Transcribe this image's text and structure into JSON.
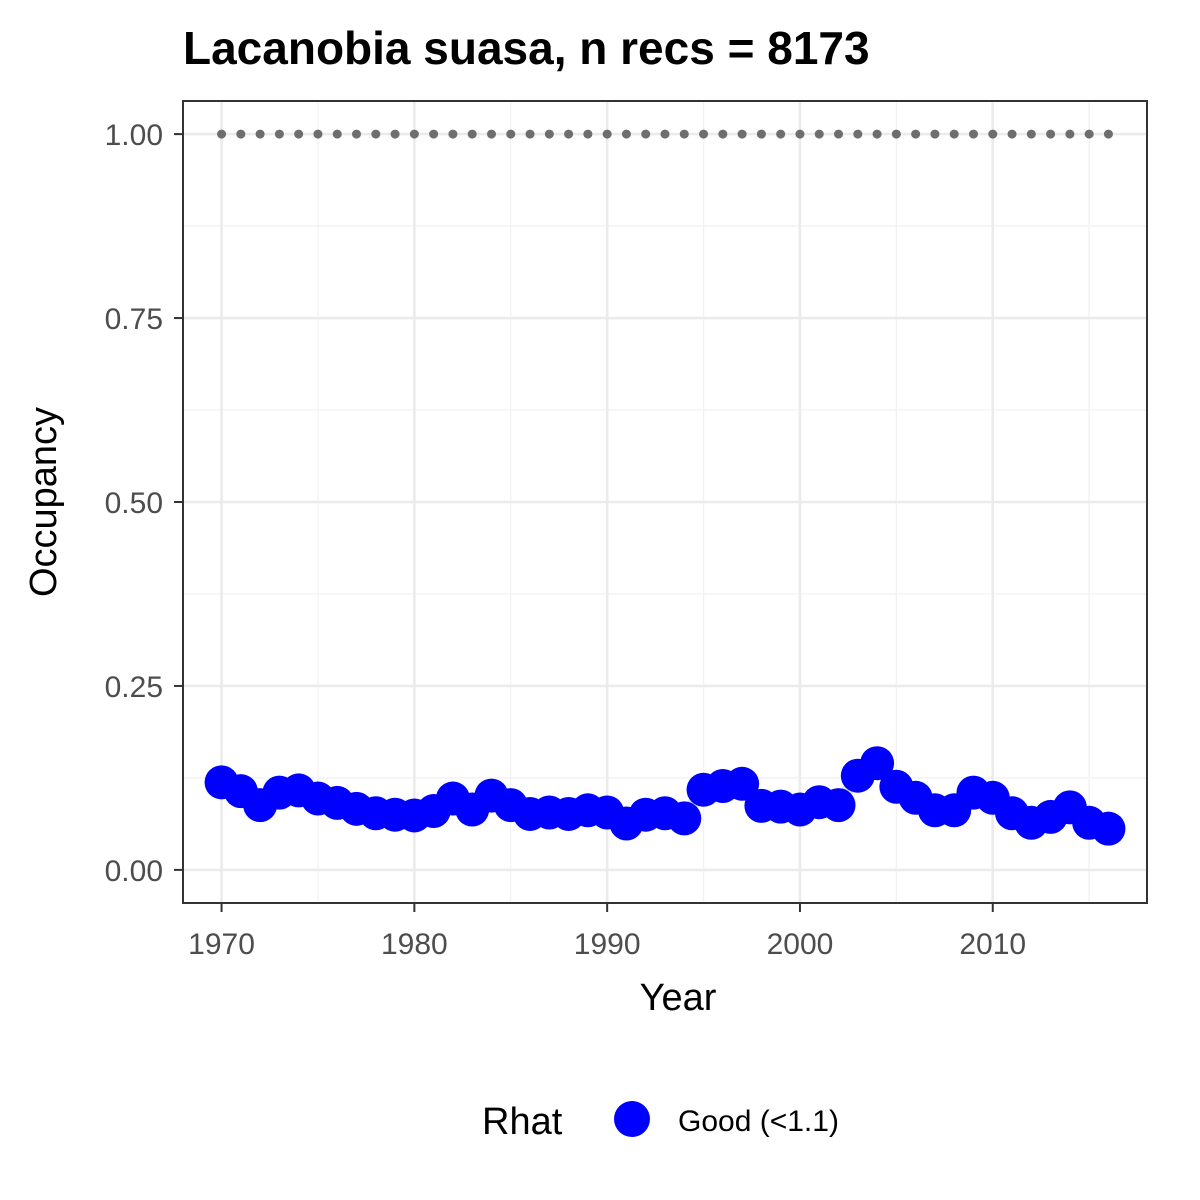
{
  "chart_data": {
    "type": "scatter",
    "title": "Lacanobia suasa, n recs = 8173",
    "xlabel": "Year",
    "ylabel": "Occupancy",
    "xlim": [
      1968,
      2018
    ],
    "ylim": [
      -0.045,
      1.045
    ],
    "x_ticks": [
      1970,
      1980,
      1990,
      2000,
      2010
    ],
    "x_tick_labels": [
      "1970",
      "1980",
      "1990",
      "2000",
      "2010"
    ],
    "y_ticks": [
      0,
      0.25,
      0.5,
      0.75,
      1.0
    ],
    "y_tick_labels": [
      "0.00",
      "0.25",
      "0.50",
      "0.75",
      "1.00"
    ],
    "grid": true,
    "legend": {
      "title": "Rhat",
      "position": "bottom",
      "entries": [
        {
          "label": "Good (<1.1)",
          "color": "#0000ff"
        }
      ]
    },
    "series": [
      {
        "name": "Good (<1.1)",
        "color": "#0000ff",
        "x": [
          1970,
          1971,
          1972,
          1973,
          1974,
          1975,
          1976,
          1977,
          1978,
          1979,
          1980,
          1981,
          1982,
          1983,
          1984,
          1985,
          1986,
          1987,
          1988,
          1989,
          1990,
          1991,
          1992,
          1993,
          1994,
          1995,
          1996,
          1997,
          1998,
          1999,
          2000,
          2001,
          2002,
          2003,
          2004,
          2005,
          2006,
          2007,
          2008,
          2009,
          2010,
          2011,
          2012,
          2013,
          2014,
          2015,
          2016
        ],
        "y": [
          0.119,
          0.107,
          0.088,
          0.105,
          0.108,
          0.097,
          0.091,
          0.083,
          0.077,
          0.075,
          0.074,
          0.08,
          0.097,
          0.082,
          0.101,
          0.088,
          0.076,
          0.078,
          0.076,
          0.081,
          0.078,
          0.063,
          0.075,
          0.077,
          0.07,
          0.109,
          0.114,
          0.117,
          0.087,
          0.086,
          0.082,
          0.092,
          0.088,
          0.128,
          0.145,
          0.113,
          0.098,
          0.081,
          0.081,
          0.105,
          0.098,
          0.077,
          0.064,
          0.072,
          0.085,
          0.064,
          0.056
        ]
      },
      {
        "name": "",
        "color": "#6e6e6e",
        "x": [
          1970,
          1971,
          1972,
          1973,
          1974,
          1975,
          1976,
          1977,
          1978,
          1979,
          1980,
          1981,
          1982,
          1983,
          1984,
          1985,
          1986,
          1987,
          1988,
          1989,
          1990,
          1991,
          1992,
          1993,
          1994,
          1995,
          1996,
          1997,
          1998,
          1999,
          2000,
          2001,
          2002,
          2003,
          2004,
          2005,
          2006,
          2007,
          2008,
          2009,
          2010,
          2011,
          2012,
          2013,
          2014,
          2015,
          2016
        ],
        "y": [
          1,
          1,
          1,
          1,
          1,
          1,
          1,
          1,
          1,
          1,
          1,
          1,
          1,
          1,
          1,
          1,
          1,
          1,
          1,
          1,
          1,
          1,
          1,
          1,
          1,
          1,
          1,
          1,
          1,
          1,
          1,
          1,
          1,
          1,
          1,
          1,
          1,
          1,
          1,
          1,
          1,
          1,
          1,
          1,
          1,
          1,
          1
        ]
      }
    ]
  }
}
